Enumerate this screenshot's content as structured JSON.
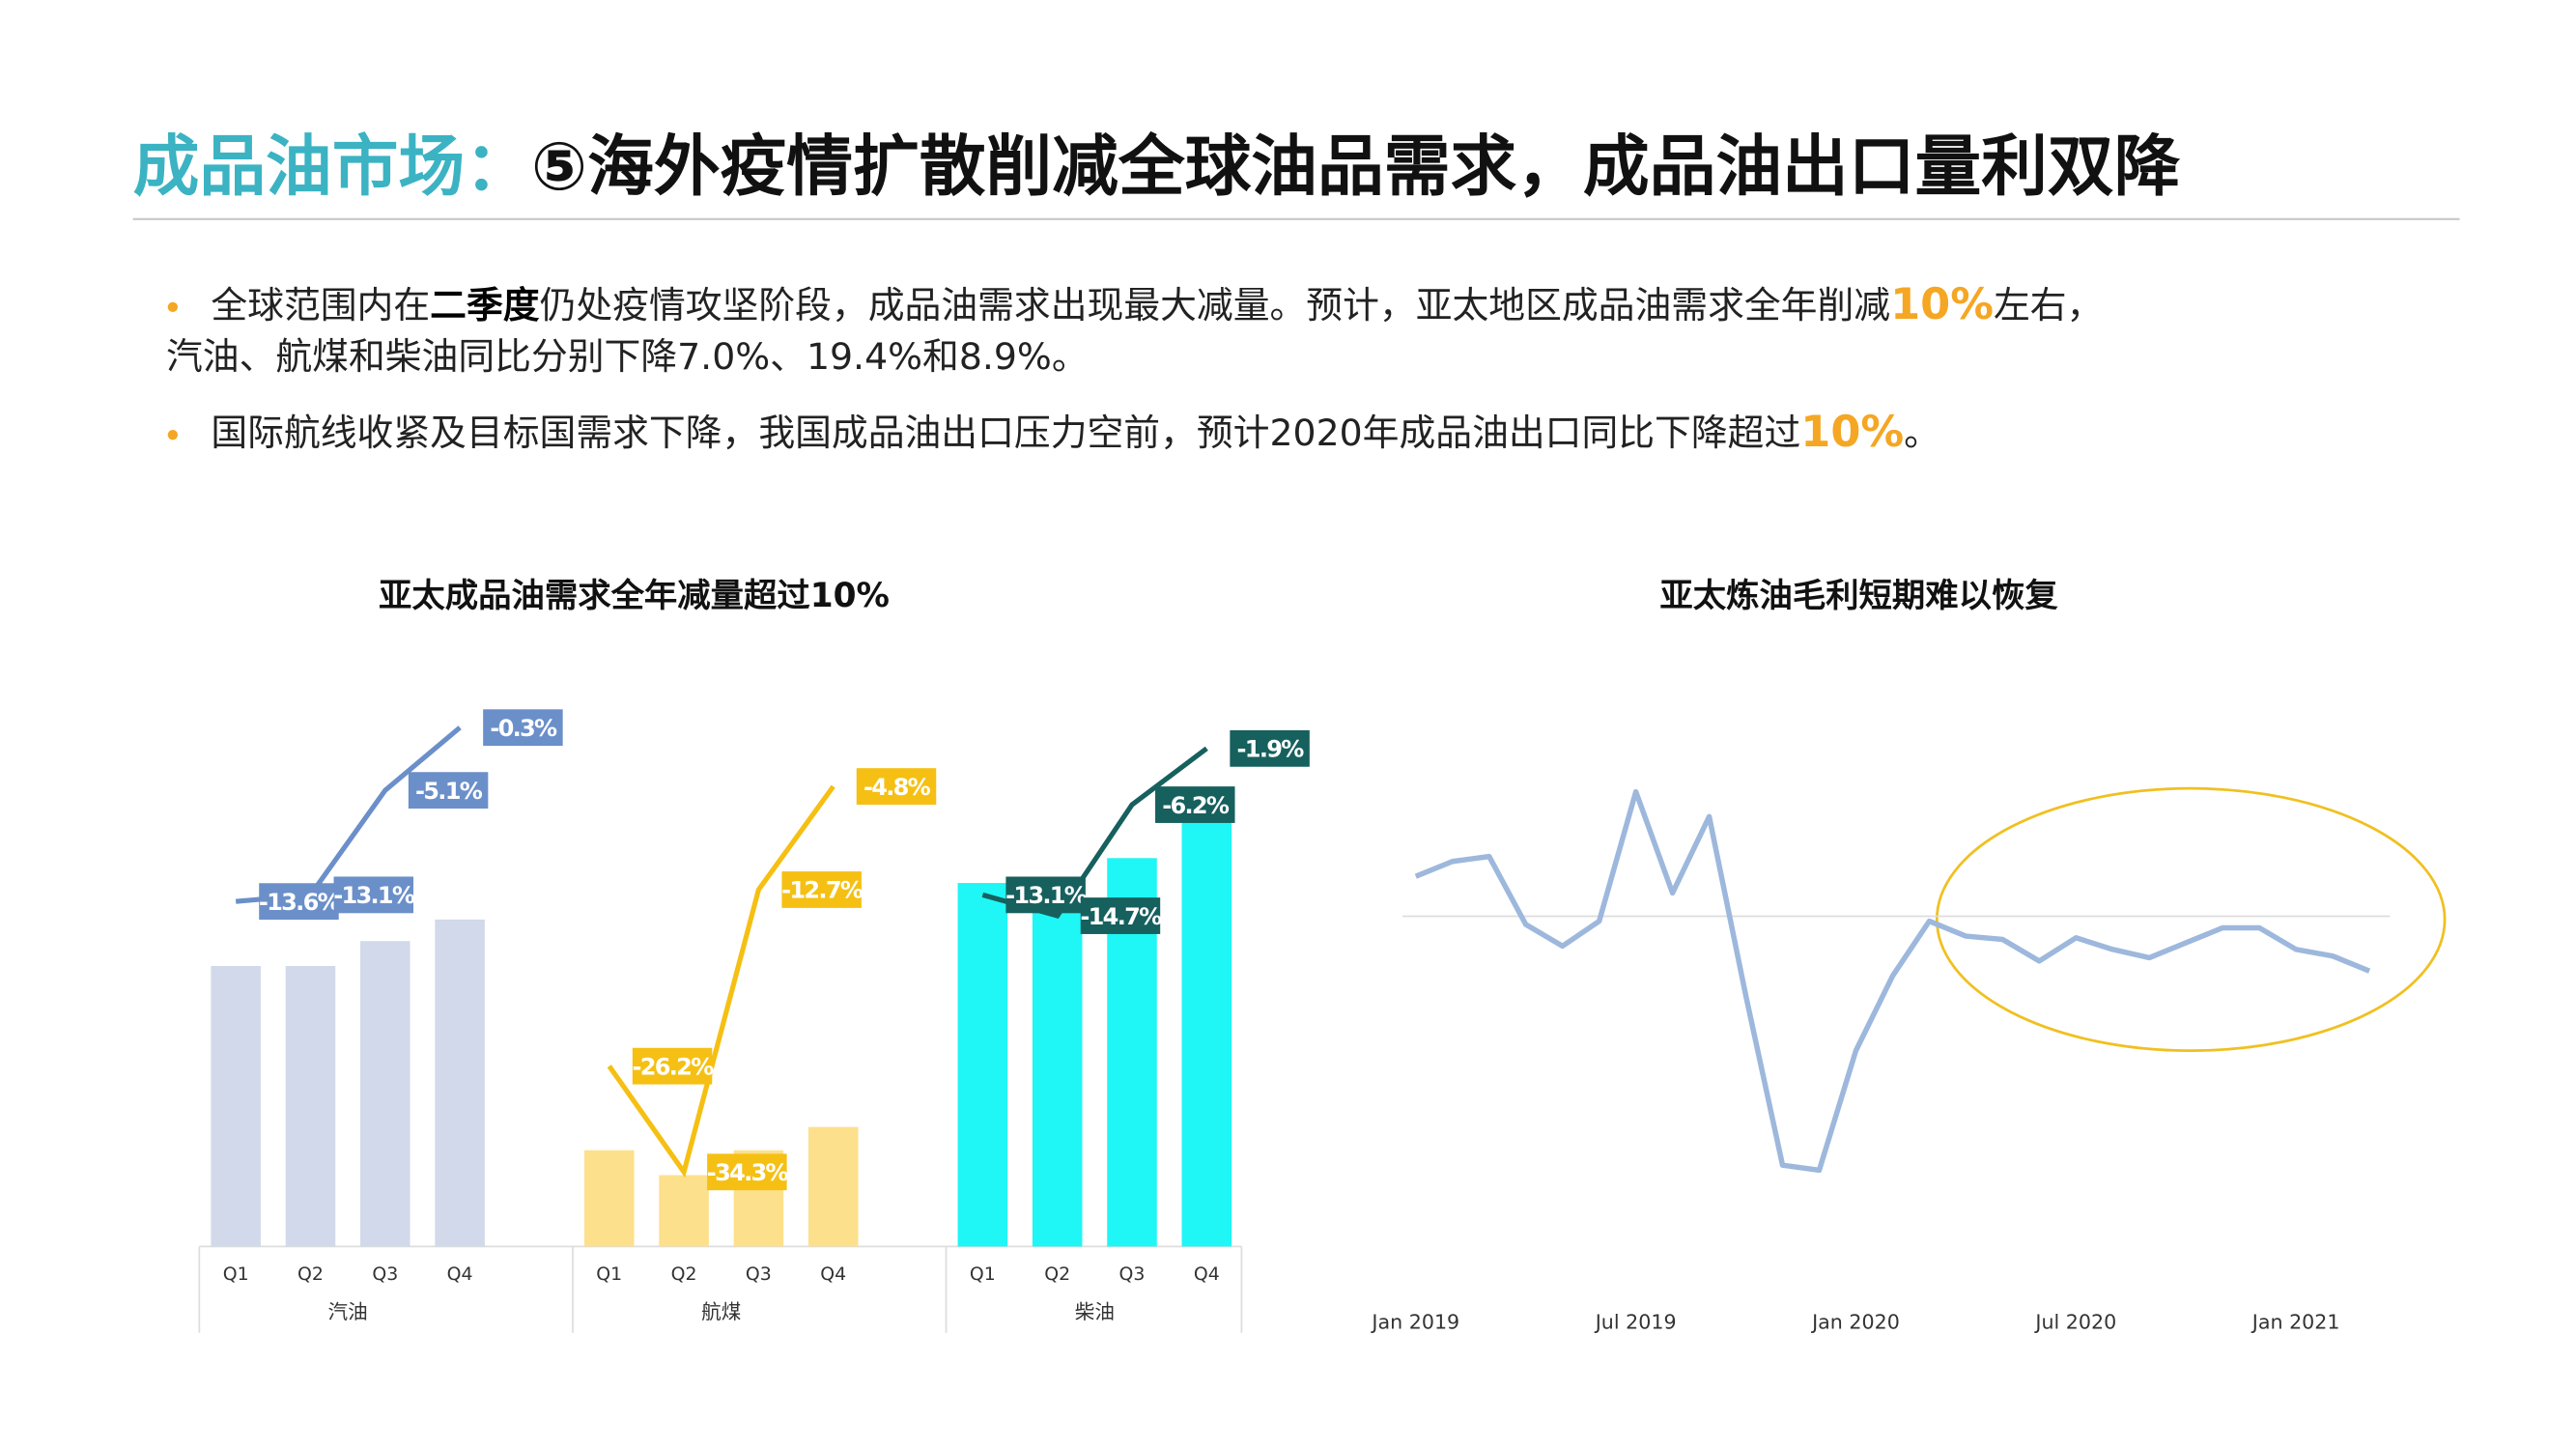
{
  "header": {
    "title_lead": "成品油市场：",
    "title_main": "⑤海外疫情扩散削减全球油品需求，成品油出口量利双降"
  },
  "bullets": [
    {
      "lines": [
        [
          {
            "text": "全球范围内在"
          },
          {
            "text": "二季度",
            "emphasis": "bold"
          },
          {
            "text": "仍处疫情攻坚阶段，成品油需求出现最大减量。预计，亚太地区成品油需求全年削减"
          },
          {
            "text": "10%",
            "emphasis": "highlight"
          },
          {
            "text": "左右，"
          }
        ],
        [
          {
            "text": "汽油、航煤和柴油同比分别下降7.0%、19.4%和8.9%。"
          }
        ]
      ]
    },
    {
      "lines": [
        [
          {
            "text": "国际航线收紧及目标国需求下降，我国成品油出口压力空前，预计2020年成品油出口同比下降超过"
          },
          {
            "text": "10%",
            "emphasis": "highlight"
          },
          {
            "text": "。"
          }
        ]
      ]
    }
  ],
  "chart_data": [
    {
      "type": "combo",
      "title": "亚太成品油需求全年减量超过10%",
      "categories": [
        "Q1",
        "Q2",
        "Q3",
        "Q4"
      ],
      "ylim": [
        0,
        315
      ],
      "y2lim": [
        -40,
        0
      ],
      "groups": [
        {
          "name": "汽油",
          "bar_color": "#d1d9ea",
          "line_color": "#6b8fc9",
          "values": [
            169,
            169,
            184,
            197
          ],
          "changes": [
            -13.6,
            -13.1,
            -5.1,
            -0.3
          ],
          "change_labels": [
            "-13.6%",
            "-13.1%",
            "-5.1%",
            "-0.3%"
          ]
        },
        {
          "name": "航煤",
          "bar_color": "#fde08c",
          "line_color": "#f5c013",
          "values": [
            58,
            43,
            58,
            72
          ],
          "changes": [
            -26.2,
            -34.3,
            -12.7,
            -4.8
          ],
          "change_labels": [
            "-26.2%",
            "-34.3%",
            "-12.7%",
            "-4.8%"
          ]
        },
        {
          "name": "柴油",
          "bar_color": "#1ff6f6",
          "line_color": "#16605e",
          "values": [
            219,
            206,
            234,
            264
          ],
          "changes": [
            -13.1,
            -14.7,
            -6.2,
            -1.9
          ],
          "change_labels": [
            "-13.1%",
            "-14.7%",
            "-6.2%",
            "-1.9%"
          ]
        }
      ]
    },
    {
      "type": "line",
      "title": "亚太炼油毛利短期难以恢复",
      "color": "#9db8dc",
      "x": [
        "2019-01",
        "2019-02",
        "2019-03",
        "2019-04",
        "2019-05",
        "2019-06",
        "2019-07",
        "2019-08",
        "2019-09",
        "2019-10",
        "2019-11",
        "2019-12",
        "2020-01",
        "2020-02",
        "2020-03",
        "2020-04",
        "2020-05",
        "2020-06",
        "2020-07",
        "2020-08",
        "2020-09",
        "2020-10",
        "2020-11",
        "2020-12",
        "2021-01",
        "2021-02",
        "2021-03"
      ],
      "values": [
        2.4,
        3.3,
        3.6,
        -0.5,
        -1.8,
        -0.3,
        7.5,
        1.4,
        6.0,
        -4.8,
        -15.0,
        -15.3,
        -8.1,
        -3.6,
        -0.3,
        -1.2,
        -1.4,
        -2.7,
        -1.3,
        -2.0,
        -2.5,
        -1.6,
        -0.7,
        -0.7,
        -2.0,
        -2.4,
        -3.3
      ],
      "ylim": [
        -20,
        10
      ],
      "reference_line": 0,
      "xticks": [
        {
          "value": "2019-01",
          "label": "Jan 2019"
        },
        {
          "value": "2019-07",
          "label": "Jul 2019"
        },
        {
          "value": "2020-01",
          "label": "Jan 2020"
        },
        {
          "value": "2020-07",
          "label": "Jul 2020"
        },
        {
          "value": "2021-01",
          "label": "Jan 2021"
        }
      ]
    }
  ]
}
